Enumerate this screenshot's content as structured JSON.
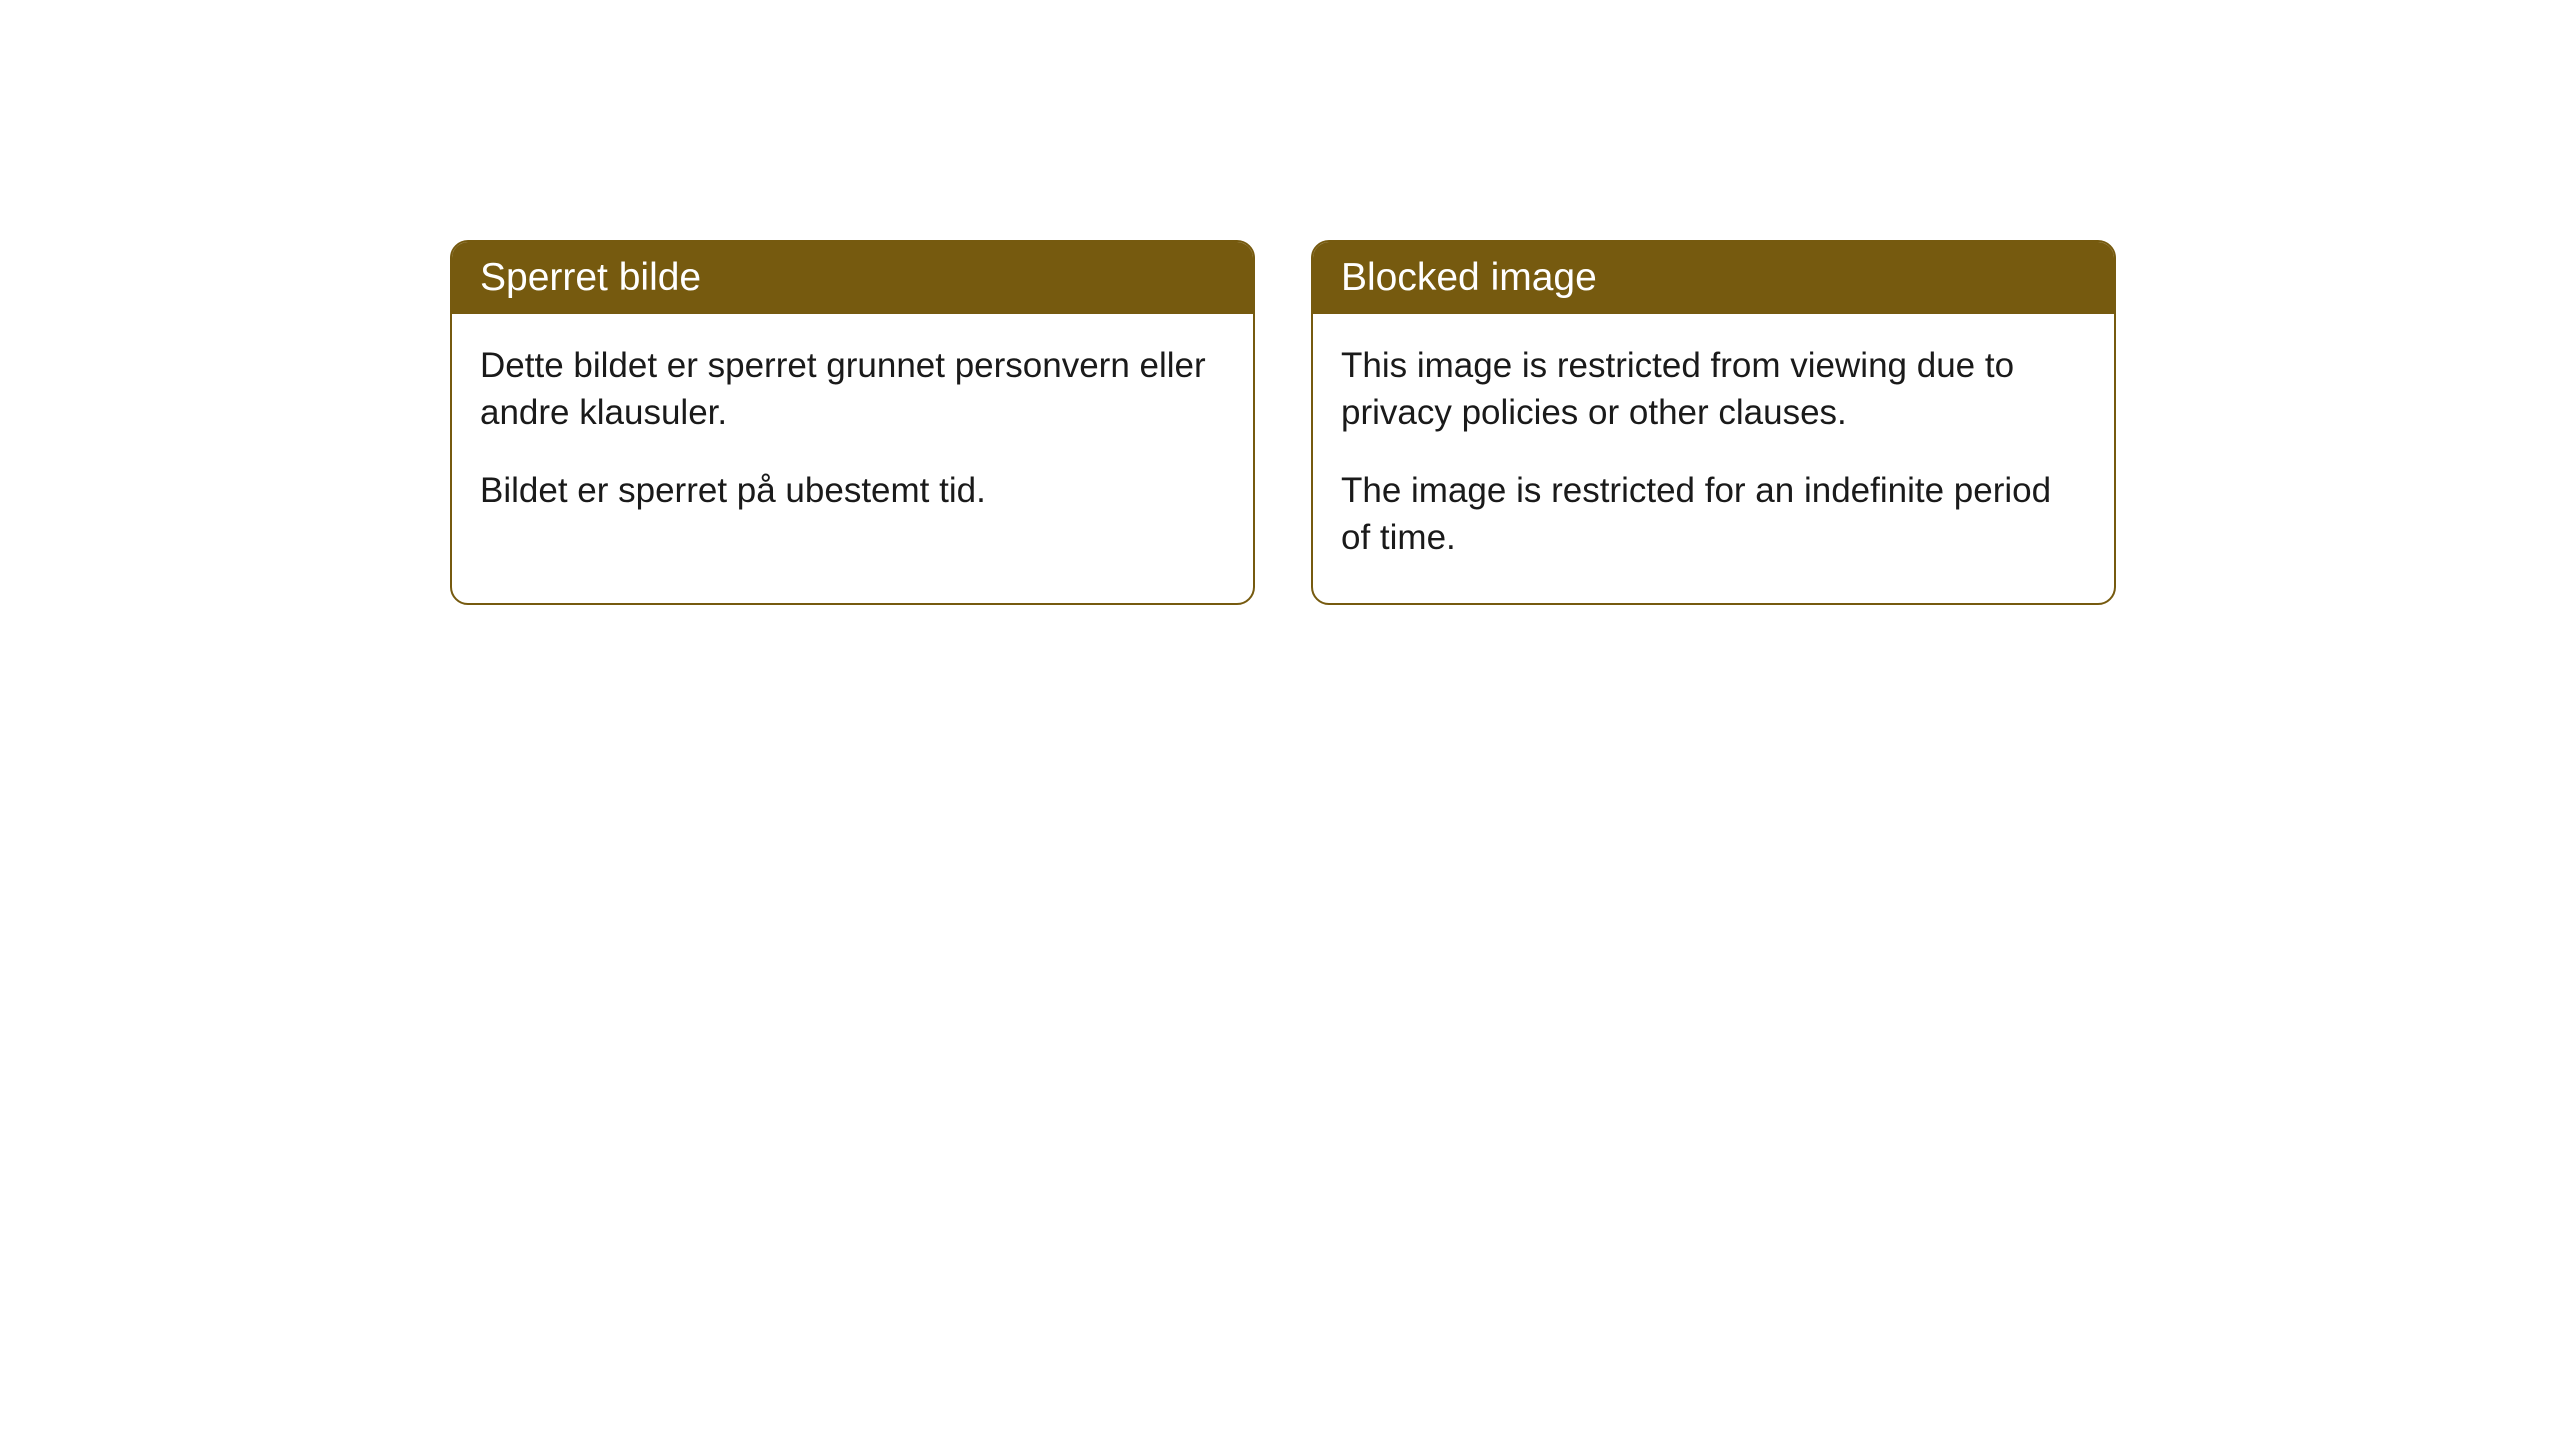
{
  "cards": [
    {
      "title": "Sperret bilde",
      "paragraph1": "Dette bildet er sperret grunnet personvern eller andre klausuler.",
      "paragraph2": "Bildet er sperret på ubestemt tid."
    },
    {
      "title": "Blocked image",
      "paragraph1": "This image is restricted from viewing due to privacy policies or other clauses.",
      "paragraph2": "The image is restricted for an indefinite period of time."
    }
  ],
  "styling": {
    "header_background": "#765a0f",
    "header_text_color": "#ffffff",
    "border_color": "#765a0f",
    "body_background": "#ffffff",
    "body_text_color": "#1a1a1a",
    "border_radius": 18,
    "title_fontsize": 39,
    "body_fontsize": 35
  }
}
